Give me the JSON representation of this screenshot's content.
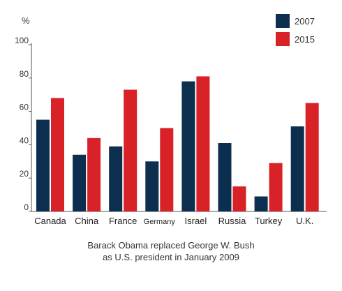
{
  "chart_data": {
    "type": "bar",
    "title": "",
    "xlabel": "",
    "ylabel": "%",
    "ylim": [
      0,
      100
    ],
    "yticks": [
      0,
      20,
      40,
      60,
      80,
      100
    ],
    "grid": false,
    "legend_position": "top-right",
    "categories": [
      "Canada",
      "China",
      "France",
      "Germany",
      "Israel",
      "Russia",
      "Turkey",
      "U.K."
    ],
    "series": [
      {
        "name": "2007",
        "color": "#0d2f4f",
        "values": [
          55,
          34,
          39,
          30,
          78,
          41,
          9,
          51
        ]
      },
      {
        "name": "2015",
        "color": "#d92128",
        "values": [
          68,
          44,
          73,
          50,
          81,
          15,
          29,
          65
        ]
      }
    ],
    "annotation": [
      "Barack Obama replaced George W. Bush",
      "as U.S. president in January 2009"
    ]
  }
}
